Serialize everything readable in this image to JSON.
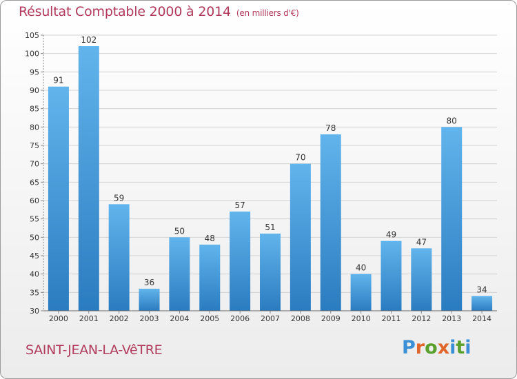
{
  "header": {
    "title": "Résultat Comptable 2000 à 2014",
    "unit": "(en milliers d'€)"
  },
  "commune": "SAINT-JEAN-LA-VêTRE",
  "logo": {
    "text": "Proxiti",
    "letter_colors": [
      "#3a8fd6",
      "#e0662c",
      "#5aa02c",
      "#e0662c",
      "#3a8fd6",
      "#5aa02c",
      "#3a8fd6"
    ]
  },
  "colors": {
    "bar_light": "#62b4ec",
    "bar_dark": "#2a7cc0",
    "axis_text": "#333333",
    "grid": "#d2d2d2"
  },
  "chart_data": {
    "type": "bar",
    "title": "Résultat Comptable 2000 à 2014",
    "xlabel": "",
    "ylabel": "",
    "categories": [
      "2000",
      "2001",
      "2002",
      "2003",
      "2004",
      "2005",
      "2006",
      "2007",
      "2008",
      "2009",
      "2010",
      "2011",
      "2012",
      "2013",
      "2014"
    ],
    "values": [
      91,
      102,
      59,
      36,
      50,
      48,
      57,
      51,
      70,
      78,
      40,
      49,
      47,
      80,
      34
    ],
    "ylim": [
      30,
      105
    ],
    "yticks": [
      30,
      35,
      40,
      45,
      50,
      55,
      60,
      65,
      70,
      75,
      80,
      85,
      90,
      95,
      100,
      105
    ],
    "grid": true
  }
}
